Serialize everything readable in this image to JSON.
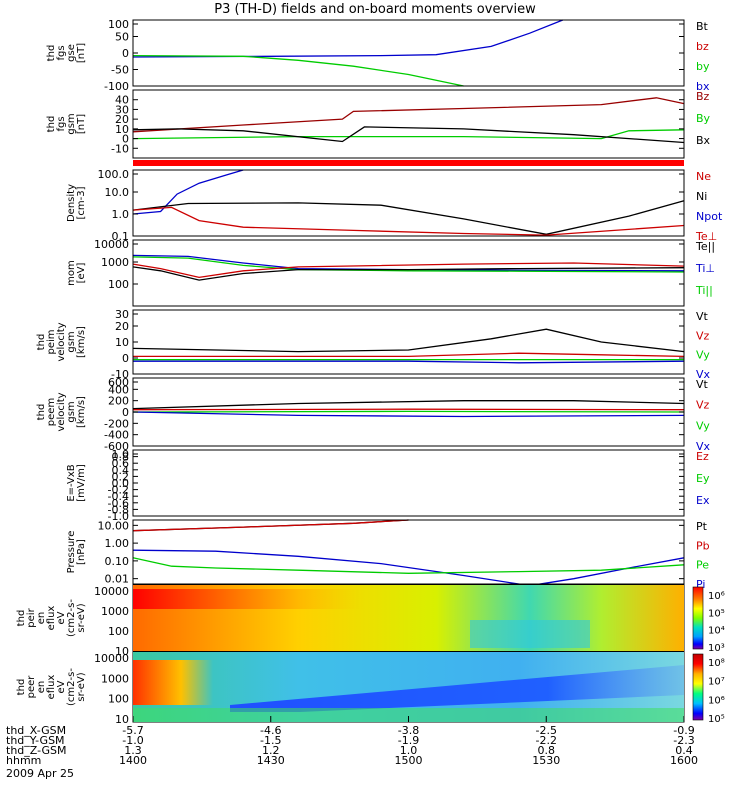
{
  "title": "P3 (TH-D) fields and on-board moments overview",
  "date_label": "2009 Apr 25",
  "chart_data": [
    {
      "type": "line",
      "ylabel": [
        "thd",
        "fgs",
        "gse",
        "[nT]"
      ],
      "ylim": [
        -100,
        100
      ],
      "yticks": [
        100,
        50,
        0,
        -50,
        -100
      ],
      "scale": "linear",
      "legend": [
        {
          "name": "Bt",
          "color": "#000000"
        },
        {
          "name": "bz",
          "color": "#cc0000"
        },
        {
          "name": "by",
          "color": "#00cc00"
        },
        {
          "name": "bx",
          "color": "#0000cc"
        }
      ],
      "series": [
        {
          "name": "bx",
          "color": "#0000cc",
          "x": [
            0,
            0.25,
            0.45,
            0.55,
            0.65,
            0.72,
            0.78
          ],
          "y": [
            -12,
            -10,
            -8,
            -5,
            20,
            60,
            100
          ]
        },
        {
          "name": "by",
          "color": "#00cc00",
          "x": [
            0,
            0.2,
            0.3,
            0.4,
            0.5,
            0.6
          ],
          "y": [
            -8,
            -10,
            -22,
            -40,
            -65,
            -100
          ]
        }
      ]
    },
    {
      "type": "line",
      "ylabel": [
        "thd",
        "fgs",
        "gsm",
        "[nT]"
      ],
      "ylim": [
        -20,
        50
      ],
      "yticks": [
        40,
        30,
        20,
        10,
        0,
        -10
      ],
      "scale": "linear",
      "legend": [
        {
          "name": "Bz",
          "color": "#990000"
        },
        {
          "name": "By",
          "color": "#00cc00"
        },
        {
          "name": "Bx",
          "color": "#000000"
        }
      ],
      "series": [
        {
          "name": "Bz",
          "color": "#990000",
          "x": [
            0,
            0.2,
            0.38,
            0.4,
            0.6,
            0.85,
            0.95,
            1.0
          ],
          "y": [
            7,
            14,
            20,
            28,
            31,
            35,
            42,
            36
          ]
        },
        {
          "name": "By",
          "color": "#00cc00",
          "x": [
            0,
            0.3,
            0.6,
            0.85,
            0.9,
            1.0
          ],
          "y": [
            0,
            2,
            2,
            0,
            8,
            9
          ]
        },
        {
          "name": "Bx",
          "color": "#000000",
          "x": [
            0,
            0.08,
            0.2,
            0.38,
            0.42,
            0.6,
            0.8,
            1.0
          ],
          "y": [
            9,
            10,
            8,
            -3,
            12,
            10,
            4,
            -4
          ]
        }
      ]
    },
    {
      "type": "line",
      "ylabel": [
        "Density",
        "[cm-3]"
      ],
      "ylim": [
        0.1,
        100
      ],
      "yticks": [
        "100.0",
        "10.0",
        "1.0",
        "0.1"
      ],
      "scale": "log",
      "legend": [
        {
          "name": "Ne",
          "color": "#cc0000"
        },
        {
          "name": "Ni",
          "color": "#000000"
        },
        {
          "name": "Npot",
          "color": "#0000cc"
        },
        {
          "name": "Te⊥",
          "color": "#cc0000"
        }
      ],
      "series": [
        {
          "name": "Npot",
          "color": "#0000cc",
          "x": [
            0,
            0.05,
            0.08,
            0.12,
            0.17,
            0.2
          ],
          "y": [
            1.0,
            1.3,
            8,
            25,
            60,
            100
          ]
        },
        {
          "name": "Ni",
          "color": "#000000",
          "x": [
            0,
            0.1,
            0.3,
            0.45,
            0.6,
            0.75,
            0.9,
            1.0
          ],
          "y": [
            1.5,
            3.0,
            3.2,
            2.5,
            0.6,
            0.12,
            0.8,
            4
          ]
        },
        {
          "name": "Ne",
          "color": "#cc0000",
          "x": [
            0,
            0.07,
            0.12,
            0.2,
            0.4,
            0.6,
            0.75,
            1.0
          ],
          "y": [
            1.5,
            2.0,
            0.5,
            0.25,
            0.18,
            0.13,
            0.11,
            0.3
          ]
        }
      ]
    },
    {
      "type": "line",
      "ylabel": [
        "mom",
        "[eV]"
      ],
      "ylim": [
        10,
        10000
      ],
      "yticks": [
        "10000",
        "1000",
        "100"
      ],
      "scale": "log",
      "legend": [
        {
          "name": "Te||",
          "color": "#000000"
        },
        {
          "name": "Ti⊥",
          "color": "#0000cc"
        },
        {
          "name": "Ti||",
          "color": "#00cc00"
        }
      ],
      "series": [
        {
          "name": "Ti⊥",
          "color": "#0000cc",
          "x": [
            0,
            0.1,
            0.2,
            0.3,
            0.5,
            0.7,
            1.0
          ],
          "y": [
            2000,
            1800,
            900,
            500,
            450,
            420,
            400
          ]
        },
        {
          "name": "Ti||",
          "color": "#00cc00",
          "x": [
            0,
            0.1,
            0.2,
            0.3,
            0.5,
            0.7,
            1.0
          ],
          "y": [
            1700,
            1500,
            700,
            450,
            400,
            380,
            350
          ]
        },
        {
          "name": "Te||",
          "color": "#000000",
          "x": [
            0,
            0.05,
            0.12,
            0.2,
            0.3,
            0.5,
            0.7,
            1.0
          ],
          "y": [
            600,
            400,
            150,
            300,
            450,
            450,
            500,
            550
          ]
        },
        {
          "name": "Te⊥",
          "color": "#cc0000",
          "x": [
            0,
            0.05,
            0.12,
            0.2,
            0.3,
            0.6,
            0.8,
            1.0
          ],
          "y": [
            800,
            500,
            200,
            400,
            600,
            800,
            900,
            650
          ]
        }
      ]
    },
    {
      "type": "line",
      "ylabel": [
        "thd",
        "peim",
        "velocity",
        "gsm",
        "[km/s]"
      ],
      "ylim": [
        -10,
        30
      ],
      "yticks": [
        30,
        20,
        10,
        0,
        -10
      ],
      "scale": "linear",
      "legend": [
        {
          "name": "Vt",
          "color": "#000000"
        },
        {
          "name": "Vz",
          "color": "#cc0000"
        },
        {
          "name": "Vy",
          "color": "#00cc00"
        },
        {
          "name": "Vx",
          "color": "#0000cc"
        }
      ],
      "series": [
        {
          "name": "Vt",
          "color": "#000000",
          "x": [
            0,
            0.3,
            0.5,
            0.65,
            0.75,
            0.85,
            1.0
          ],
          "y": [
            6,
            4,
            5,
            12,
            18,
            10,
            4
          ]
        },
        {
          "name": "Vz",
          "color": "#cc0000",
          "x": [
            0,
            0.5,
            0.7,
            0.85,
            1.0
          ],
          "y": [
            1,
            1,
            3,
            2,
            1
          ]
        },
        {
          "name": "Vy",
          "color": "#00cc00",
          "x": [
            0,
            0.5,
            0.7,
            1.0
          ],
          "y": [
            -1,
            -1,
            -1,
            -1
          ]
        },
        {
          "name": "Vx",
          "color": "#0000cc",
          "x": [
            0,
            0.5,
            0.7,
            1.0
          ],
          "y": [
            -2,
            -2,
            -3,
            -2
          ]
        }
      ]
    },
    {
      "type": "line",
      "ylabel": [
        "thd",
        "peem",
        "velocity",
        "gsm",
        "[km/s]"
      ],
      "ylim": [
        -600,
        600
      ],
      "yticks": [
        600,
        400,
        200,
        0,
        -200,
        -400,
        -600
      ],
      "scale": "linear",
      "legend": [
        {
          "name": "Vt",
          "color": "#000000"
        },
        {
          "name": "Vz",
          "color": "#cc0000"
        },
        {
          "name": "Vy",
          "color": "#00cc00"
        },
        {
          "name": "Vx",
          "color": "#0000cc"
        }
      ],
      "series": [
        {
          "name": "Vt",
          "color": "#000000",
          "x": [
            0,
            0.3,
            0.6,
            0.8,
            1.0
          ],
          "y": [
            60,
            150,
            200,
            200,
            150
          ]
        },
        {
          "name": "Vz",
          "color": "#cc0000",
          "x": [
            0,
            0.5,
            1.0
          ],
          "y": [
            40,
            50,
            40
          ]
        },
        {
          "name": "Vy",
          "color": "#00cc00",
          "x": [
            0,
            0.5,
            1.0
          ],
          "y": [
            0,
            10,
            0
          ]
        },
        {
          "name": "Vx",
          "color": "#0000cc",
          "x": [
            0,
            0.3,
            0.6,
            1.0
          ],
          "y": [
            0,
            -60,
            -80,
            -60
          ]
        }
      ]
    },
    {
      "type": "line",
      "ylabel": [
        "E=-VxB",
        "[mV/m]"
      ],
      "ylim": [
        -1,
        1
      ],
      "yticks": [
        "1.0",
        "0.8",
        "0.6",
        "0.4",
        "0.2",
        "0.0",
        "-0.2",
        "-0.4",
        "-0.6",
        "-0.8",
        "-1.0"
      ],
      "scale": "linear",
      "legend": [
        {
          "name": "Ez",
          "color": "#cc0000"
        },
        {
          "name": "Ey",
          "color": "#00cc00"
        },
        {
          "name": "Ex",
          "color": "#0000cc"
        }
      ],
      "series": []
    },
    {
      "type": "line",
      "ylabel": [
        "Pressure",
        "[nPa]"
      ],
      "ylim": [
        0.005,
        20
      ],
      "yticks": [
        "10.00",
        "1.00",
        "0.10",
        "0.01"
      ],
      "scale": "log",
      "legend": [
        {
          "name": "Pt",
          "color": "#000000"
        },
        {
          "name": "Pb",
          "color": "#cc0000"
        },
        {
          "name": "Pe",
          "color": "#00cc00"
        },
        {
          "name": "Pi",
          "color": "#0000cc"
        }
      ],
      "series": [
        {
          "name": "Pt",
          "color": "#000000",
          "x": [
            0,
            0.2,
            0.4,
            0.5
          ],
          "y": [
            5,
            8,
            13,
            20
          ]
        },
        {
          "name": "Pb",
          "color": "#cc0000",
          "x": [
            0,
            0.2,
            0.4,
            0.5
          ],
          "y": [
            5,
            8,
            13,
            20
          ]
        },
        {
          "name": "Pi",
          "color": "#0000cc",
          "x": [
            0,
            0.15,
            0.3,
            0.45,
            0.6,
            0.72,
            0.8,
            0.9,
            1.0
          ],
          "y": [
            0.4,
            0.35,
            0.18,
            0.07,
            0.015,
            0.004,
            0.01,
            0.04,
            0.15
          ]
        },
        {
          "name": "Pe",
          "color": "#00cc00",
          "x": [
            0,
            0.07,
            0.15,
            0.3,
            0.5,
            0.7,
            0.85,
            1.0
          ],
          "y": [
            0.15,
            0.05,
            0.04,
            0.03,
            0.02,
            0.025,
            0.03,
            0.06
          ]
        }
      ]
    },
    {
      "type": "heatmap",
      "ylabel": [
        "thd",
        "peir",
        "en",
        "eflux",
        "eV",
        "(cm2-s-",
        "sr-eV)"
      ],
      "ylim": [
        10,
        20000
      ],
      "yticks": [
        "10000",
        "1000",
        "100",
        "10"
      ],
      "scale": "log",
      "colorbar_ticks": [
        "10⁶",
        "10⁵",
        "10⁴",
        "10³"
      ]
    },
    {
      "type": "heatmap",
      "ylabel": [
        "thd",
        "peer",
        "en",
        "eflux",
        "eV",
        "(cm2-s-",
        "sr-eV)"
      ],
      "ylim": [
        7,
        20000
      ],
      "yticks": [
        "10000",
        "1000",
        "100",
        "10"
      ],
      "scale": "log",
      "colorbar_ticks": [
        "10⁸",
        "10⁷",
        "10⁶",
        "10⁵"
      ]
    }
  ],
  "xaxis": {
    "rows": [
      {
        "label": "thd_X-GSM",
        "values": [
          "-5.7",
          "-4.6",
          "-3.8",
          "-2.5",
          "-0.9"
        ]
      },
      {
        "label": "thd_Y-GSM",
        "values": [
          "-1.0",
          "-1.5",
          "-1.9",
          "-2.2",
          "-2.3"
        ]
      },
      {
        "label": "thd_Z-GSM",
        "values": [
          "1.3",
          "1.2",
          "1.0",
          "0.8",
          "0.4"
        ]
      },
      {
        "label": "hhmm",
        "values": [
          "1400",
          "1430",
          "1500",
          "1530",
          "1600"
        ]
      }
    ]
  }
}
